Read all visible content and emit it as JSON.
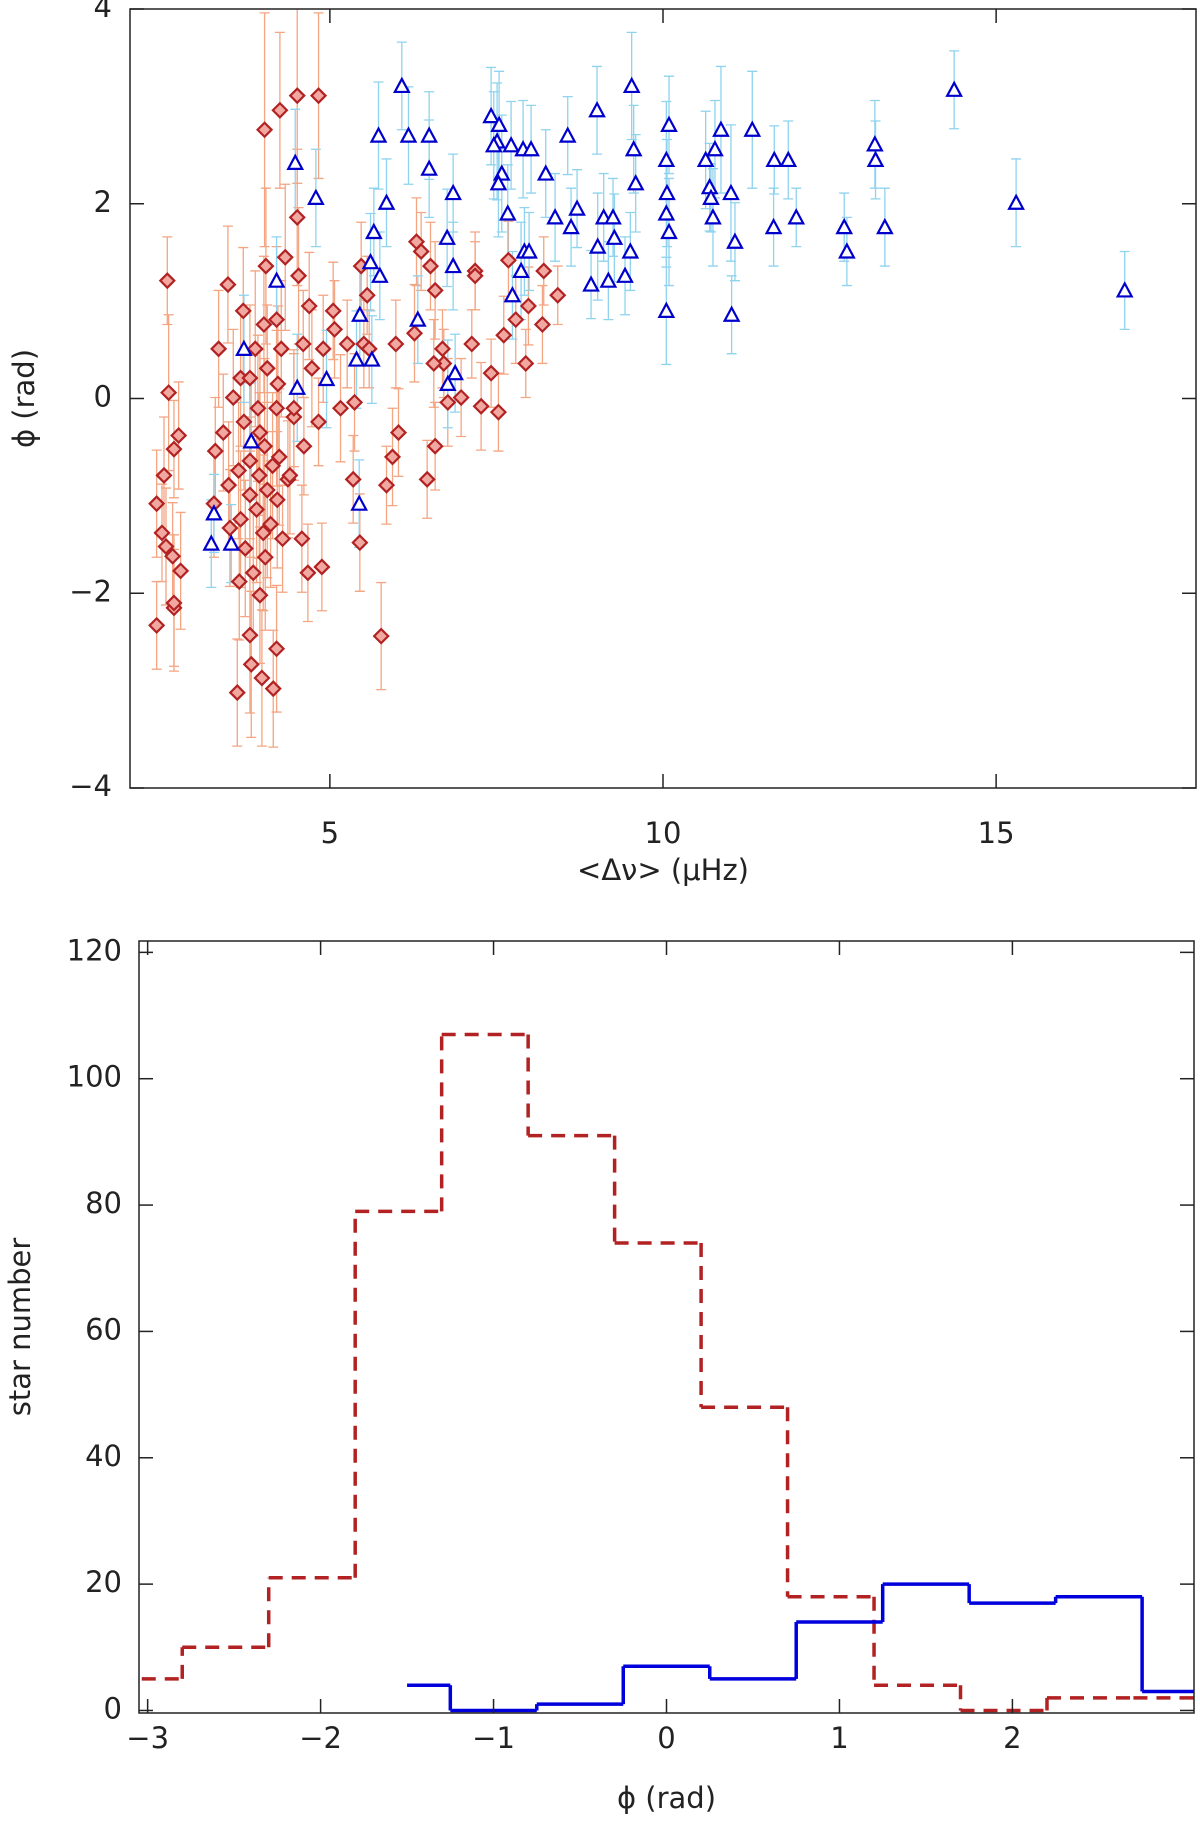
{
  "chart_data": [
    {
      "type": "scatter",
      "x_label": "<Δν> (μHz)",
      "y_label": "ϕ (rad)",
      "xlim": [
        2,
        18
      ],
      "ylim": [
        -4,
        4
      ],
      "xticks": [
        5,
        10,
        15
      ],
      "yticks": [
        {
          "value": -4,
          "label": "−4"
        },
        {
          "value": -2,
          "label": "−2"
        },
        0,
        2,
        4
      ],
      "series": [
        {
          "marker": "diamond",
          "color": "#b22222",
          "error_color": "#f4a582",
          "x": [
            2.56,
            2.58,
            2.4,
            2.66,
            2.66,
            2.4,
            2.51,
            2.48,
            2.64,
            2.76,
            2.66,
            2.73,
            2.54,
            4.02,
            4.25,
            4.51,
            4.83,
            4.51,
            4.33,
            4.04,
            4.53,
            3.47,
            3.7,
            4.69,
            5.05,
            4.01,
            4.2,
            3.33,
            3.88,
            4.27,
            4.6,
            4.06,
            3.66,
            3.8,
            4.22,
            4.73,
            5.26,
            5.07,
            4.9,
            3.55,
            3.92,
            4.2,
            4.46,
            3.71,
            3.95,
            3.4,
            4.02,
            3.28,
            4.24,
            3.8,
            4.14,
            3.63,
            3.94,
            4.37,
            3.48,
            4.06,
            3.8,
            4.21,
            3.26,
            3.9,
            3.66,
            4.11,
            3.5,
            4.0,
            4.29,
            3.73,
            4.03,
            3.85,
            3.64,
            3.95,
            3.8,
            3.82,
            3.98,
            4.15,
            3.61,
            4.2,
            4.67,
            4.88,
            4.58,
            4.4,
            4.61,
            4.83,
            5.16,
            5.37,
            5.51,
            5.59,
            5.99,
            6.27,
            6.3,
            6.37,
            6.51,
            6.58,
            5.47,
            5.56,
            5.77,
            5.45,
            5.35,
            5.85,
            5.94,
            6.03,
            6.46,
            6.58,
            6.69,
            6.71,
            6.77,
            6.97,
            7.13,
            7.18,
            7.18,
            7.27,
            7.53,
            7.42,
            7.61,
            7.79,
            7.98,
            7.94,
            8.19,
            8.42,
            8.21,
            7.68,
            6.56,
            4.46
          ],
          "y": [
            1.21,
            0.06,
            -2.33,
            -2.15,
            -2.1,
            -1.08,
            -0.79,
            -1.38,
            -1.62,
            -1.77,
            -0.52,
            -0.38,
            -1.52,
            2.76,
            2.96,
            3.11,
            3.11,
            1.86,
            1.45,
            1.36,
            1.26,
            1.17,
            0.9,
            0.95,
            0.9,
            0.76,
            0.81,
            0.51,
            0.51,
            0.51,
            0.56,
            0.31,
            0.21,
            0.21,
            0.15,
            0.31,
            0.56,
            0.71,
            0.51,
            0.01,
            -0.1,
            -0.1,
            -0.19,
            -0.24,
            -0.35,
            -0.35,
            -0.49,
            -0.54,
            -0.6,
            -0.64,
            -0.69,
            -0.74,
            -0.79,
            -0.83,
            -0.89,
            -0.94,
            -0.99,
            -1.04,
            -1.08,
            -1.14,
            -1.24,
            -1.29,
            -1.33,
            -1.38,
            -1.44,
            -1.54,
            -1.63,
            -1.79,
            -1.88,
            -2.02,
            -2.43,
            -2.73,
            -2.87,
            -2.98,
            -3.02,
            -2.57,
            -1.79,
            -1.73,
            -1.44,
            -0.79,
            -0.49,
            -0.24,
            -0.1,
            -0.04,
            0.56,
            0.51,
            0.56,
            0.67,
            1.61,
            1.51,
            1.36,
            1.11,
            1.36,
            1.06,
            -2.44,
            -1.48,
            -0.83,
            -0.89,
            -0.6,
            -0.35,
            -0.83,
            -0.49,
            0.51,
            0.36,
            -0.04,
            0.01,
            0.56,
            1.31,
            1.26,
            -0.08,
            -0.14,
            0.26,
            0.65,
            0.81,
            0.95,
            0.36,
            0.76,
            1.06,
            1.31,
            1.42,
            0.36,
            -0.1
          ],
          "errors": [
            0.45,
            0.8,
            0.45,
            0.6,
            0.7,
            0.55,
            0.6,
            0.5,
            0.55,
            0.6,
            0.5,
            0.55,
            0.6,
            1.2,
            0.8,
            0.9,
            0.85,
            0.7,
            0.75,
            0.8,
            0.7,
            0.6,
            0.65,
            0.55,
            0.5,
            0.7,
            0.75,
            0.6,
            0.8,
            0.7,
            0.55,
            0.65,
            0.7,
            0.75,
            0.8,
            0.6,
            0.45,
            0.5,
            0.55,
            0.7,
            0.75,
            0.8,
            0.65,
            0.7,
            0.85,
            0.6,
            0.9,
            0.55,
            0.7,
            0.8,
            0.75,
            0.7,
            0.85,
            0.6,
            0.65,
            0.9,
            0.8,
            0.7,
            0.55,
            0.75,
            0.7,
            0.65,
            0.6,
            0.8,
            0.55,
            0.7,
            0.75,
            0.65,
            0.6,
            0.7,
            0.8,
            0.75,
            0.7,
            0.6,
            0.55,
            0.65,
            0.5,
            0.45,
            0.55,
            0.6,
            0.5,
            0.45,
            0.55,
            0.5,
            0.45,
            0.4,
            0.45,
            0.5,
            0.45,
            0.4,
            0.45,
            0.5,
            0.45,
            0.4,
            0.55,
            0.5,
            0.45,
            0.4,
            0.5,
            0.45,
            0.4,
            0.45,
            0.4,
            0.35,
            0.45,
            0.4,
            0.35,
            0.4,
            0.35,
            0.45,
            0.4,
            0.35,
            0.4,
            0.45,
            0.4,
            0.35,
            0.4,
            0.3,
            0.35,
            0.4,
            0.45,
            0.6
          ]
        },
        {
          "marker": "triangle",
          "color": "#0000cc",
          "error_color": "#8fd3ee",
          "x": [
            6.08,
            9.53,
            14.37,
            7.42,
            9.01,
            10.09,
            7.54,
            7.51,
            7.46,
            7.72,
            7.9,
            8.02,
            5.73,
            6.18,
            6.49,
            8.57,
            11.34,
            10.87,
            9.56,
            13.18,
            10.78,
            13.19,
            10.05,
            10.64,
            11.67,
            11.88,
            4.48,
            6.49,
            7.58,
            8.24,
            7.53,
            9.59,
            10.7,
            10.06,
            11.02,
            6.85,
            4.79,
            10.72,
            5.85,
            15.3,
            8.71,
            7.67,
            10.05,
            9.11,
            9.25,
            10.75,
            12.0,
            8.38,
            8.62,
            10.09,
            11.66,
            12.72,
            13.33,
            5.66,
            6.76,
            9.27,
            11.08,
            9.02,
            9.51,
            12.76,
            7.92,
            7.99,
            5.61,
            6.85,
            7.87,
            9.43,
            8.92,
            9.18,
            5.75,
            4.2,
            16.93,
            7.74,
            10.05,
            11.03,
            5.45,
            6.32,
            3.71,
            5.4,
            5.63,
            6.88,
            4.95,
            6.77,
            4.51,
            3.82,
            5.44,
            3.26,
            3.22,
            3.52
          ],
          "y": [
            3.21,
            3.21,
            3.17,
            2.9,
            2.96,
            2.81,
            2.81,
            2.64,
            2.6,
            2.6,
            2.56,
            2.56,
            2.7,
            2.7,
            2.7,
            2.7,
            2.76,
            2.76,
            2.56,
            2.61,
            2.56,
            2.45,
            2.45,
            2.45,
            2.45,
            2.45,
            2.42,
            2.36,
            2.31,
            2.31,
            2.21,
            2.21,
            2.17,
            2.11,
            2.11,
            2.11,
            2.06,
            2.06,
            2.01,
            2.01,
            1.95,
            1.9,
            1.9,
            1.86,
            1.86,
            1.86,
            1.86,
            1.86,
            1.76,
            1.71,
            1.76,
            1.76,
            1.76,
            1.71,
            1.65,
            1.65,
            1.61,
            1.56,
            1.51,
            1.51,
            1.51,
            1.51,
            1.4,
            1.36,
            1.31,
            1.26,
            1.17,
            1.21,
            1.26,
            1.21,
            1.11,
            1.06,
            0.9,
            0.86,
            0.86,
            0.81,
            0.51,
            0.4,
            0.4,
            0.26,
            0.2,
            0.15,
            0.11,
            -0.44,
            -1.08,
            -1.18,
            -1.49,
            -1.49
          ],
          "errors": [
            0.45,
            0.55,
            0.4,
            0.5,
            0.45,
            0.5,
            0.55,
            0.6,
            0.55,
            0.45,
            0.5,
            0.45,
            0.55,
            0.5,
            0.45,
            0.4,
            0.6,
            0.65,
            0.45,
            0.45,
            0.5,
            0.4,
            0.6,
            0.5,
            0.35,
            0.4,
            0.55,
            0.5,
            0.6,
            0.45,
            0.55,
            0.5,
            0.45,
            0.55,
            0.7,
            0.4,
            0.5,
            0.35,
            0.45,
            0.45,
            0.4,
            0.5,
            0.55,
            0.45,
            0.4,
            0.5,
            0.3,
            0.45,
            0.4,
            0.55,
            0.4,
            0.35,
            0.4,
            0.45,
            0.5,
            0.45,
            0.4,
            0.55,
            0.4,
            0.35,
            0.45,
            0.4,
            0.5,
            0.45,
            0.5,
            0.4,
            0.35,
            0.4,
            0.45,
            0.45,
            0.4,
            0.45,
            0.55,
            0.4,
            0.5,
            0.45,
            0.55,
            0.5,
            0.45,
            0.4,
            0.5,
            0.45,
            0.55,
            0.6,
            0.45,
            0.4,
            0.45,
            0.4
          ]
        }
      ]
    },
    {
      "type": "histogram",
      "x_label": "ϕ (rad)",
      "y_label": "star number",
      "xlim": [
        -3.05,
        3.05
      ],
      "ylim": [
        -0.4,
        121.8
      ],
      "xticks": [
        {
          "value": -3,
          "label": "−3"
        },
        {
          "value": -2,
          "label": "−2"
        },
        {
          "value": -1,
          "label": "−1"
        },
        0,
        1,
        2
      ],
      "yticks": [
        0,
        20,
        40,
        60,
        80,
        100,
        120
      ],
      "series": [
        {
          "color": "#b22222",
          "dashed": true,
          "bins": [
            -3.3,
            -2.8,
            -2.3,
            -1.8,
            -1.3,
            -0.8,
            -0.3,
            0.2,
            0.7,
            1.2,
            1.7,
            2.2,
            2.7,
            3.2
          ],
          "values": [
            5,
            10,
            21,
            79,
            107,
            91,
            74,
            48,
            18,
            4,
            0,
            2,
            2
          ]
        },
        {
          "color": "#0000dd",
          "dashed": false,
          "bins": [
            -1.5,
            -1.25,
            -0.75,
            -0.25,
            0.25,
            0.75,
            1.25,
            1.75,
            2.25,
            2.75,
            3.25
          ],
          "values": [
            4,
            0,
            1,
            7,
            5,
            14,
            20,
            17,
            18,
            3
          ]
        }
      ]
    }
  ]
}
